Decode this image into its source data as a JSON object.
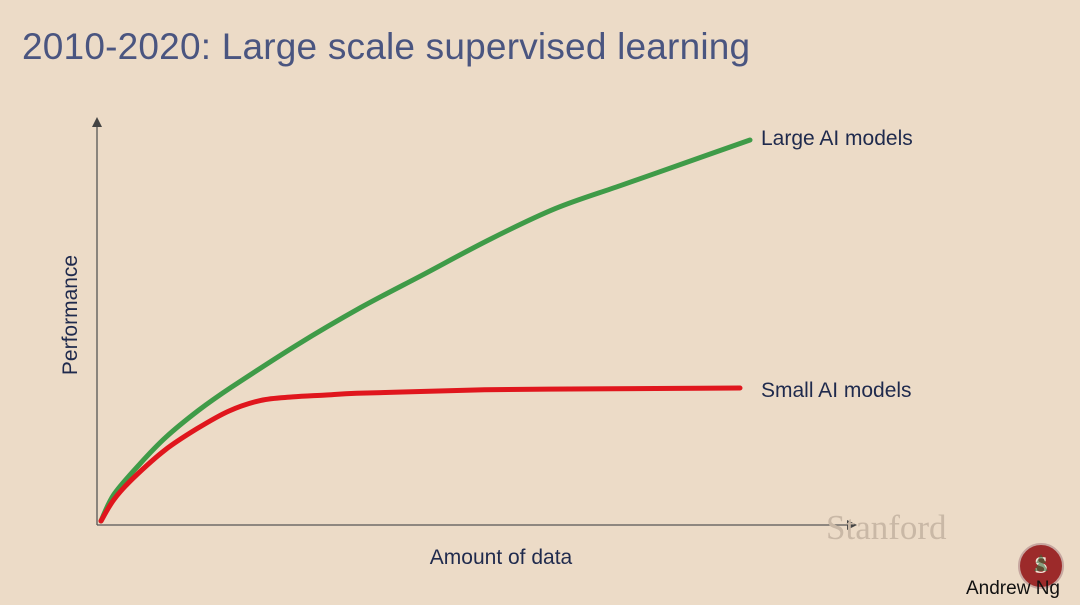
{
  "slide": {
    "title": "2010-2020: Large scale supervised learning",
    "watermark": "Stanford",
    "author": "Andrew Ng"
  },
  "colors": {
    "background": "#ecdbc7",
    "title": "#4a5580",
    "label": "#1f2a4d",
    "large_series": "#3f9b48",
    "small_series": "#e0161d",
    "axis": "#444444",
    "logo": "#9c2a2a"
  },
  "chart_data": {
    "type": "line",
    "title": "",
    "xlabel": "Amount of data",
    "ylabel": "Performance",
    "xlim": [
      0,
      1
    ],
    "ylim": [
      0,
      1
    ],
    "ticks": "none",
    "grid": false,
    "legend": "inline labels at line ends (right)",
    "series": [
      {
        "name": "Large AI models",
        "color": "#3f9b48",
        "x": [
          0,
          0.02,
          0.06,
          0.1,
          0.15,
          0.2,
          0.3,
          0.4,
          0.5,
          0.6,
          0.7,
          0.8,
          0.9,
          1.0
        ],
        "y": [
          0,
          0.07,
          0.15,
          0.22,
          0.29,
          0.35,
          0.46,
          0.56,
          0.65,
          0.74,
          0.82,
          0.88,
          0.94,
          1.0
        ]
      },
      {
        "name": "Small AI models",
        "color": "#e0161d",
        "x": [
          0,
          0.02,
          0.05,
          0.1,
          0.15,
          0.2,
          0.25,
          0.3,
          0.35,
          0.4,
          0.5,
          0.6,
          0.7,
          0.8,
          0.9,
          1.0
        ],
        "y": [
          0,
          0.06,
          0.12,
          0.2,
          0.26,
          0.31,
          0.34,
          0.35,
          0.355,
          0.36,
          0.365,
          0.37,
          0.372,
          0.373,
          0.374,
          0.375
        ]
      }
    ]
  }
}
